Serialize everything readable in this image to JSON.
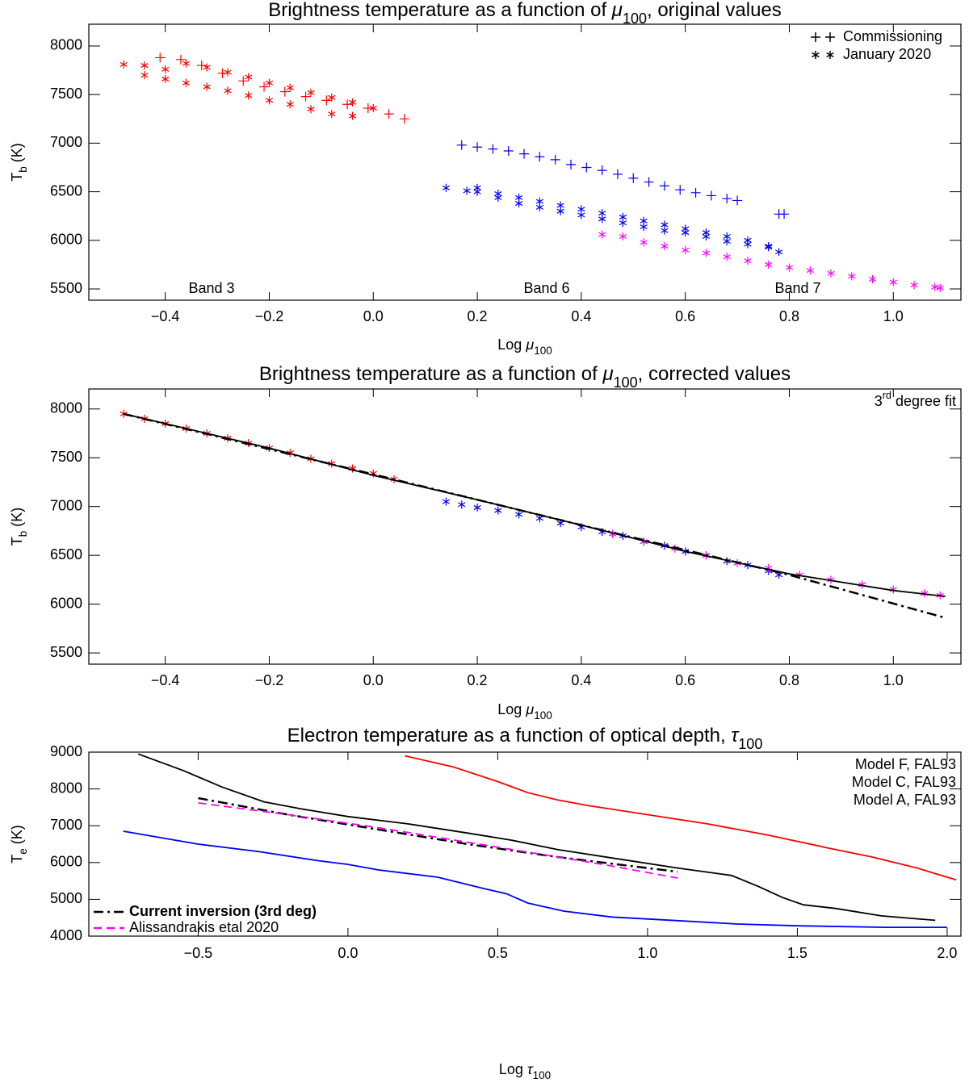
{
  "chart_data": [
    {
      "type": "scatter",
      "title": {
        "text": "Brightness temperature as a function of ",
        "symbol": "μ",
        "sub": "100",
        "rest": ", original values"
      },
      "xlabel": {
        "text": "Log ",
        "symbol": "μ",
        "sub": "100"
      },
      "ylabel": {
        "text": "T",
        "sub": "b",
        "rest": " (K)"
      },
      "xlim": [
        -0.547,
        1.13
      ],
      "ylim": [
        5384,
        8224
      ],
      "xticks": [
        {
          "value": -0.4,
          "label": "−0.4"
        },
        {
          "value": -0.2,
          "label": "−0.2"
        },
        {
          "value": 0,
          "label": "0.0"
        },
        0.2,
        0.4,
        0.6,
        0.8,
        {
          "value": 1,
          "label": "1.0"
        }
      ],
      "yticks": [
        5500,
        6000,
        6500,
        7000,
        7500,
        8000
      ],
      "legend": [
        {
          "label": "Commissioning",
          "marker": "plus"
        },
        {
          "label": "January 2020",
          "marker": "star"
        }
      ],
      "annotations": [
        {
          "text": "Band 3",
          "color": "#ff0000"
        },
        {
          "text": "Band 6",
          "color": "#0000ff"
        },
        {
          "text": "Band 7",
          "color": "#ff00ff"
        }
      ],
      "series": [
        {
          "marker": "plus",
          "color": "#ff0000",
          "x": [
            -0.41,
            -0.37,
            -0.33,
            -0.29,
            -0.25,
            -0.21,
            -0.17,
            -0.13,
            -0.09,
            -0.05,
            -0.01,
            0.03,
            0.06
          ],
          "values": [
            7880,
            7860,
            7800,
            7720,
            7640,
            7580,
            7530,
            7480,
            7440,
            7400,
            7360,
            7300,
            7250
          ]
        },
        {
          "marker": "star",
          "color": "#ff0000",
          "x": [
            -0.48,
            -0.44,
            -0.4,
            -0.36,
            -0.32,
            -0.28,
            -0.24,
            -0.2,
            -0.16,
            -0.12,
            -0.08,
            -0.04,
            0.0,
            -0.44,
            -0.4,
            -0.36,
            -0.32,
            -0.28,
            -0.24,
            -0.2,
            -0.16,
            -0.12,
            -0.08,
            -0.04
          ],
          "values": [
            7810,
            7800,
            7760,
            7820,
            7780,
            7730,
            7680,
            7620,
            7570,
            7520,
            7470,
            7420,
            7360,
            7700,
            7660,
            7620,
            7580,
            7540,
            7490,
            7440,
            7400,
            7350,
            7300,
            7280
          ]
        },
        {
          "marker": "plus",
          "color": "#0000ff",
          "x": [
            0.17,
            0.2,
            0.23,
            0.26,
            0.29,
            0.32,
            0.35,
            0.38,
            0.41,
            0.44,
            0.47,
            0.5,
            0.53,
            0.56,
            0.59,
            0.62,
            0.65,
            0.68,
            0.7,
            0.78,
            0.79
          ],
          "values": [
            6980,
            6960,
            6940,
            6920,
            6890,
            6860,
            6830,
            6780,
            6750,
            6720,
            6680,
            6640,
            6600,
            6560,
            6520,
            6490,
            6460,
            6430,
            6410,
            6270,
            6270
          ]
        },
        {
          "marker": "star",
          "color": "#0000ff",
          "x": [
            0.14,
            0.18,
            0.2,
            0.24,
            0.28,
            0.32,
            0.36,
            0.4,
            0.44,
            0.48,
            0.52,
            0.56,
            0.6,
            0.64,
            0.68,
            0.72,
            0.76,
            0.78,
            0.2,
            0.24,
            0.28,
            0.32,
            0.36,
            0.4,
            0.44,
            0.48,
            0.52,
            0.56,
            0.6,
            0.64,
            0.68,
            0.72,
            0.76
          ],
          "values": [
            6540,
            6510,
            6540,
            6480,
            6440,
            6400,
            6360,
            6320,
            6280,
            6240,
            6200,
            6160,
            6120,
            6080,
            6040,
            6000,
            5940,
            5880,
            6500,
            6440,
            6380,
            6340,
            6300,
            6260,
            6220,
            6180,
            6140,
            6100,
            6080,
            6040,
            5990,
            5960,
            5930
          ]
        },
        {
          "marker": "star",
          "color": "#ff00ff",
          "x": [
            0.44,
            0.48,
            0.52,
            0.56,
            0.6,
            0.64,
            0.68,
            0.72,
            0.76,
            0.8,
            0.84,
            0.88,
            0.92,
            0.96,
            1.0,
            1.04,
            1.08,
            1.09
          ],
          "values": [
            6060,
            6040,
            5980,
            5940,
            5900,
            5870,
            5830,
            5790,
            5750,
            5720,
            5690,
            5660,
            5630,
            5600,
            5570,
            5540,
            5520,
            5510
          ]
        }
      ]
    },
    {
      "type": "scatter",
      "title": {
        "text": "Brightness temperature as a function of ",
        "symbol": "μ",
        "sub": "100",
        "rest": ", corrected values"
      },
      "xlabel": {
        "text": "Log ",
        "symbol": "μ",
        "sub": "100"
      },
      "ylabel": {
        "text": "T",
        "sub": "b",
        "rest": " (K)"
      },
      "xlim": [
        -0.547,
        1.13
      ],
      "ylim": [
        5385,
        8205
      ],
      "xticks": [
        {
          "value": -0.4,
          "label": "−0.4"
        },
        {
          "value": -0.2,
          "label": "−0.2"
        },
        {
          "value": 0,
          "label": "0.0"
        },
        0.2,
        0.4,
        0.6,
        0.8,
        {
          "value": 1,
          "label": "1.0"
        }
      ],
      "yticks": [
        5500,
        6000,
        6500,
        7000,
        7500,
        8000
      ],
      "note": {
        "number": "3",
        "sup": "rd",
        "text": " degree fit"
      },
      "series": [
        {
          "marker": "star",
          "color": "#ff0000",
          "x": [
            -0.48,
            -0.44,
            -0.4,
            -0.36,
            -0.32,
            -0.28,
            -0.24,
            -0.2,
            -0.16,
            -0.12,
            -0.08,
            -0.04,
            0.0,
            0.04
          ],
          "values": [
            7950,
            7900,
            7850,
            7800,
            7750,
            7700,
            7650,
            7600,
            7550,
            7490,
            7440,
            7390,
            7340,
            7280
          ]
        },
        {
          "marker": "star",
          "color": "#0000ff",
          "x": [
            0.14,
            0.17,
            0.2,
            0.24,
            0.28,
            0.32,
            0.36,
            0.4,
            0.44,
            0.48,
            0.52,
            0.56,
            0.6,
            0.64,
            0.68,
            0.72,
            0.76,
            0.78
          ],
          "values": [
            7050,
            7020,
            6990,
            6960,
            6920,
            6880,
            6830,
            6790,
            6740,
            6700,
            6640,
            6600,
            6540,
            6500,
            6440,
            6400,
            6340,
            6300
          ]
        },
        {
          "marker": "star",
          "color": "#ff00ff",
          "x": [
            0.46,
            0.52,
            0.58,
            0.64,
            0.7,
            0.76,
            0.82,
            0.88,
            0.94,
            1.0,
            1.06,
            1.09
          ],
          "values": [
            6720,
            6640,
            6570,
            6500,
            6420,
            6370,
            6300,
            6250,
            6200,
            6150,
            6110,
            6090
          ]
        },
        {
          "marker": "line",
          "style": "solid",
          "color": "#000000",
          "x": [
            -0.48,
            -0.2,
            0.0,
            0.2,
            0.4,
            0.6,
            0.8,
            1.0,
            1.1
          ],
          "values": [
            7950,
            7600,
            7320,
            7070,
            6810,
            6540,
            6310,
            6140,
            6080
          ]
        },
        {
          "marker": "line",
          "style": "dashdot",
          "color": "#000000",
          "x": [
            -0.48,
            0.0,
            0.4,
            0.8,
            1.1
          ],
          "values": [
            7950,
            7330,
            6810,
            6300,
            5860
          ]
        }
      ]
    },
    {
      "type": "line",
      "title": {
        "text": "Electron temperature as a function of optical depth, ",
        "symbol": "τ",
        "sub": "100"
      },
      "xlabel": {
        "text": "Log ",
        "symbol": "τ",
        "sub": "100"
      },
      "ylabel": {
        "text": "T",
        "sub": "e",
        "rest": " (K)"
      },
      "xlim": [
        -0.865,
        2.046
      ],
      "ylim": [
        4000,
        9000
      ],
      "xticks": [
        {
          "value": -0.5,
          "label": "−0.5"
        },
        {
          "value": 0,
          "label": "0.0"
        },
        0.5,
        {
          "value": 1,
          "label": "1.0"
        },
        1.5,
        {
          "value": 2,
          "label": "2.0"
        }
      ],
      "yticks": [
        4000,
        5000,
        6000,
        7000,
        8000,
        9000
      ],
      "series": [
        {
          "name": "Model F, FAL93",
          "color": "#ff0000",
          "style": "solid",
          "legend": "upper right",
          "x": [
            0.19,
            0.35,
            0.5,
            0.6,
            0.7,
            0.8,
            1.0,
            1.2,
            1.4,
            1.6,
            1.75,
            1.9,
            1.96,
            2.03
          ],
          "values": [
            8900,
            8600,
            8200,
            7900,
            7700,
            7550,
            7300,
            7050,
            6750,
            6400,
            6150,
            5850,
            5700,
            5530
          ]
        },
        {
          "name": "Model C, FAL93",
          "color": "#000000",
          "style": "solid",
          "legend": "upper right",
          "x": [
            -0.7,
            -0.55,
            -0.42,
            -0.28,
            -0.15,
            0.0,
            0.2,
            0.4,
            0.55,
            0.7,
            0.9,
            1.1,
            1.28,
            1.37,
            1.45,
            1.52,
            1.63,
            1.78,
            1.96
          ],
          "values": [
            8950,
            8500,
            8050,
            7650,
            7450,
            7250,
            7050,
            6800,
            6600,
            6350,
            6100,
            5850,
            5650,
            5350,
            5050,
            4850,
            4750,
            4550,
            4430
          ]
        },
        {
          "name": "Model A, FAL93",
          "color": "#0000ff",
          "style": "solid",
          "legend": "upper right",
          "x": [
            -0.75,
            -0.5,
            -0.3,
            -0.1,
            0.0,
            0.1,
            0.3,
            0.45,
            0.53,
            0.6,
            0.72,
            0.88,
            1.1,
            1.3,
            1.5,
            1.8,
            2.0
          ],
          "values": [
            6850,
            6500,
            6300,
            6050,
            5950,
            5800,
            5600,
            5300,
            5150,
            4900,
            4680,
            4520,
            4420,
            4330,
            4280,
            4240,
            4240
          ]
        },
        {
          "name": "Current inversion (3rd deg)",
          "color": "#000000",
          "style": "dashdot",
          "legend": "lower left",
          "x": [
            -0.5,
            -0.2,
            0.1,
            0.4,
            0.7,
            0.9,
            1.1
          ],
          "values": [
            7750,
            7300,
            6900,
            6500,
            6150,
            5950,
            5750
          ]
        },
        {
          "name": "Alissandrakis etal 2020",
          "color": "#ff00ff",
          "style": "dashed",
          "legend": "lower left",
          "x": [
            -0.5,
            -0.2,
            0.1,
            0.4,
            0.7,
            0.85,
            1.1
          ],
          "values": [
            7620,
            7300,
            6950,
            6550,
            6150,
            5950,
            5580
          ]
        }
      ]
    }
  ]
}
